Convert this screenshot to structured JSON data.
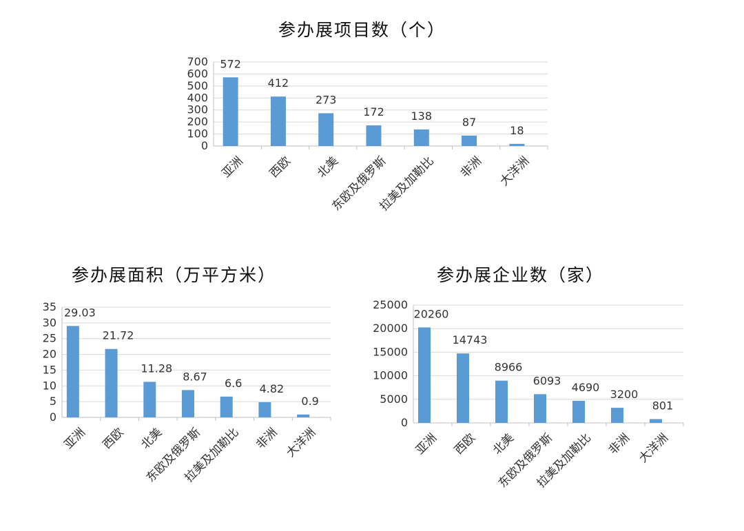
{
  "chart_data": [
    {
      "type": "bar",
      "title": "参办展项目数（个）",
      "categories": [
        "亚洲",
        "西欧",
        "北美",
        "东欧及俄罗斯",
        "拉美及加勒比",
        "非洲",
        "大洋洲"
      ],
      "values": [
        572,
        412,
        273,
        172,
        138,
        87,
        18
      ],
      "value_labels": [
        "572",
        "412",
        "273",
        "172",
        "138",
        "87",
        "18"
      ],
      "ylim": [
        0,
        700
      ],
      "yticks": [
        0,
        100,
        200,
        300,
        400,
        500,
        600,
        700
      ],
      "xlabel": "",
      "ylabel": "",
      "grid": true,
      "color": "#5B9BD5"
    },
    {
      "type": "bar",
      "title": "参办展面积（万平方米）",
      "categories": [
        "亚洲",
        "西欧",
        "北美",
        "东欧及俄罗斯",
        "拉美及加勒比",
        "非洲",
        "大洋洲"
      ],
      "values": [
        29.03,
        21.72,
        11.28,
        8.67,
        6.6,
        4.82,
        0.9
      ],
      "value_labels": [
        "29.03",
        "21.72",
        "11.28",
        "8.67",
        "6.6",
        "4.82",
        "0.9"
      ],
      "ylim": [
        0,
        35
      ],
      "yticks": [
        0,
        5,
        10,
        15,
        20,
        25,
        30,
        35
      ],
      "xlabel": "",
      "ylabel": "",
      "grid": true,
      "color": "#5B9BD5"
    },
    {
      "type": "bar",
      "title": "参办展企业数（家）",
      "categories": [
        "亚洲",
        "西欧",
        "北美",
        "东欧及俄罗斯",
        "拉美及加勒比",
        "非洲",
        "大洋洲"
      ],
      "values": [
        20260,
        14743,
        8966,
        6093,
        4690,
        3200,
        801
      ],
      "value_labels": [
        "20260",
        "14743",
        "8966",
        "6093",
        "4690",
        "3200",
        "801"
      ],
      "ylim": [
        0,
        25000
      ],
      "yticks": [
        0,
        5000,
        10000,
        15000,
        20000,
        25000
      ],
      "xlabel": "",
      "ylabel": "",
      "grid": true,
      "color": "#5B9BD5"
    }
  ]
}
